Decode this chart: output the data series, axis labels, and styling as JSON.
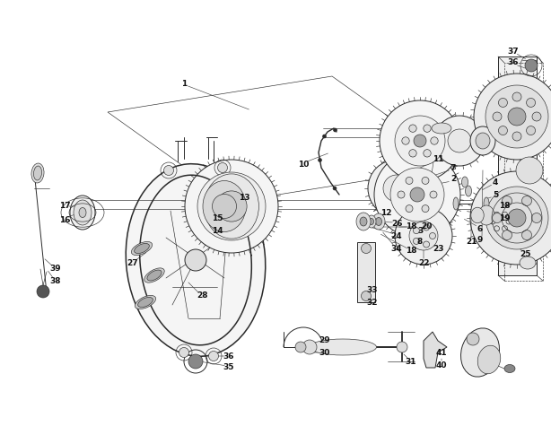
{
  "bg_color": "#ffffff",
  "lc": "#2a2a2a",
  "figsize": [
    6.14,
    4.75
  ],
  "dpi": 100,
  "labels": [
    [
      "1",
      2.05,
      3.82
    ],
    [
      "2",
      5.05,
      2.75
    ],
    [
      "3",
      4.68,
      2.18
    ],
    [
      "4",
      5.52,
      2.72
    ],
    [
      "5",
      5.52,
      2.58
    ],
    [
      "6",
      5.35,
      2.2
    ],
    [
      "7",
      5.05,
      2.88
    ],
    [
      "8",
      4.68,
      2.05
    ],
    [
      "9",
      5.35,
      2.07
    ],
    [
      "10",
      3.38,
      2.92
    ],
    [
      "11",
      4.88,
      2.98
    ],
    [
      "12",
      4.3,
      2.38
    ],
    [
      "13",
      2.72,
      2.55
    ],
    [
      "14",
      2.42,
      2.18
    ],
    [
      "15",
      2.42,
      2.32
    ],
    [
      "16",
      0.72,
      2.3
    ],
    [
      "17",
      0.72,
      2.45
    ],
    [
      "18",
      4.58,
      1.95
    ],
    [
      "18",
      4.58,
      2.22
    ],
    [
      "18",
      5.62,
      2.45
    ],
    [
      "19",
      5.62,
      2.32
    ],
    [
      "20",
      4.75,
      2.22
    ],
    [
      "21",
      5.25,
      2.05
    ],
    [
      "22",
      4.72,
      1.82
    ],
    [
      "23",
      4.88,
      1.98
    ],
    [
      "24",
      4.42,
      2.12
    ],
    [
      "25",
      5.85,
      1.92
    ],
    [
      "26",
      4.42,
      2.25
    ],
    [
      "27",
      1.48,
      1.82
    ],
    [
      "28",
      2.25,
      1.45
    ],
    [
      "29",
      3.62,
      0.95
    ],
    [
      "30",
      3.62,
      0.82
    ],
    [
      "31",
      4.58,
      0.72
    ],
    [
      "32",
      4.15,
      1.38
    ],
    [
      "33",
      4.15,
      1.52
    ],
    [
      "34",
      4.42,
      1.98
    ],
    [
      "35",
      2.55,
      0.65
    ],
    [
      "36",
      2.55,
      0.78
    ],
    [
      "36",
      5.72,
      4.05
    ],
    [
      "37",
      5.72,
      4.18
    ],
    [
      "38",
      0.62,
      1.62
    ],
    [
      "39",
      0.62,
      1.75
    ],
    [
      "40",
      4.92,
      0.68
    ],
    [
      "41",
      4.92,
      0.82
    ]
  ]
}
